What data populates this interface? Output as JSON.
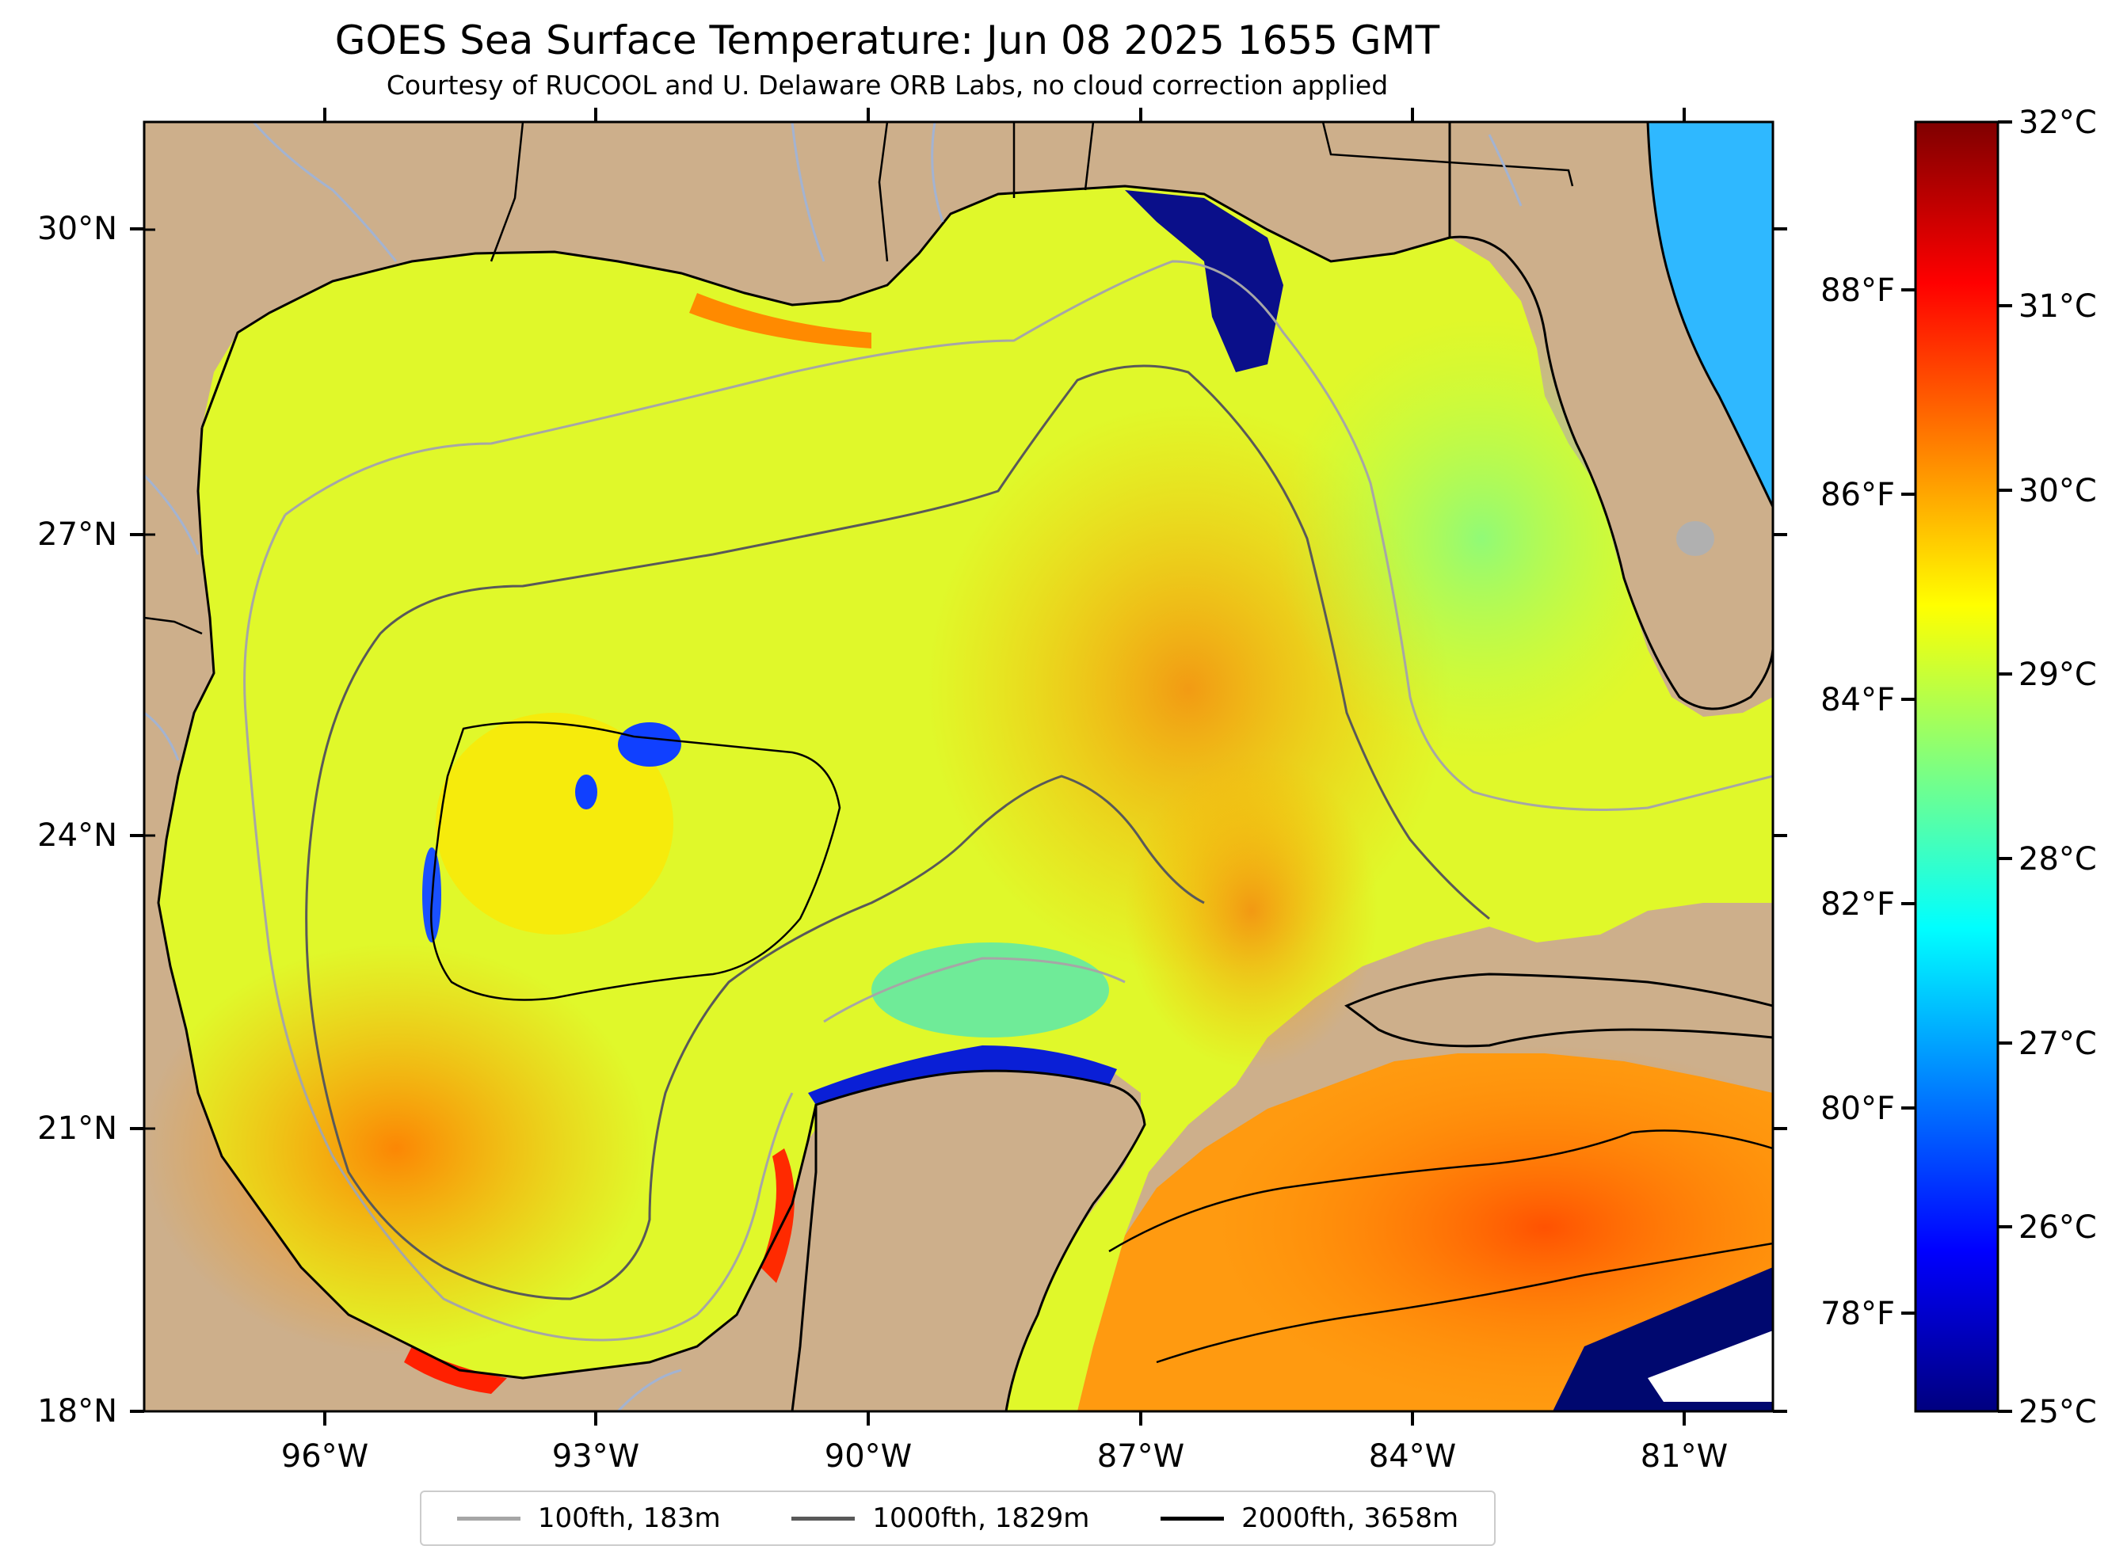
{
  "title": "GOES Sea Surface Temperature: Jun 08 2025 1655 GMT",
  "subtitle": "Courtesy of RUCOOL and U. Delaware ORB Labs, no cloud correction applied",
  "map": {
    "lon_range": [
      -98,
      -80
    ],
    "lat_range": [
      18,
      31
    ],
    "lat_ticks": [
      {
        "value": 30,
        "label": "30°N"
      },
      {
        "value": 27,
        "label": "27°N"
      },
      {
        "value": 24,
        "label": "24°N"
      },
      {
        "value": 21,
        "label": "21°N"
      },
      {
        "value": 18,
        "label": "18°N"
      }
    ],
    "lon_ticks": [
      {
        "value": -96,
        "label": "96°W"
      },
      {
        "value": -93,
        "label": "93°W"
      },
      {
        "value": -90,
        "label": "90°W"
      },
      {
        "value": -87,
        "label": "87°W"
      },
      {
        "value": -84,
        "label": "84°W"
      },
      {
        "value": -81,
        "label": "81°W"
      }
    ],
    "land_color": "#cdaf8b",
    "water_line_color": "#a3b3d1"
  },
  "colorbar": {
    "colors": [
      "#00007f",
      "#0000ff",
      "#007fff",
      "#00ffff",
      "#7fff7f",
      "#ffff00",
      "#ff7f00",
      "#ff0000",
      "#7f0000"
    ],
    "celsius_range": [
      25,
      32
    ],
    "celsius_labels": [
      "32°C",
      "31°C",
      "30°C",
      "29°C",
      "28°C",
      "27°C",
      "26°C",
      "25°C"
    ],
    "fahrenheit_labels": [
      "88°F",
      "86°F",
      "84°F",
      "82°F",
      "80°F",
      "78°F"
    ]
  },
  "legend": [
    {
      "label": "100fth, 183m",
      "color": "#a6a6a6"
    },
    {
      "label": "1000fth, 1829m",
      "color": "#595959"
    },
    {
      "label": "2000fth, 3658m",
      "color": "#000000"
    }
  ]
}
